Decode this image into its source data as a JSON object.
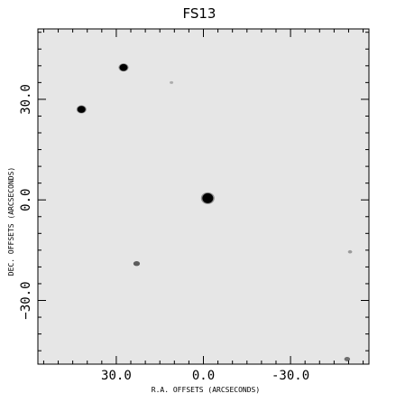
{
  "chart_data": {
    "type": "scatter",
    "title": "FS13",
    "xlabel": "R.A. OFFSETS (ARCSECONDS)",
    "ylabel": "DEC. OFFSETS (ARCSECONDS)",
    "xlim": [
      57.0,
      -57.0
    ],
    "ylim": [
      -49.0,
      51.0
    ],
    "x_ticks": [
      30.0,
      0.0,
      -30.0
    ],
    "x_tick_labels": [
      "30.0",
      "0.0",
      "-30.0"
    ],
    "y_ticks": [
      30.0,
      0.0,
      -30.0
    ],
    "y_tick_labels": [
      "30.0",
      "0.0",
      "−30.0"
    ],
    "grid": false,
    "background": "#e6e6e6",
    "source_color": "#000000",
    "sources": [
      {
        "x": 27.5,
        "y": 39.5,
        "brightness": 0.95
      },
      {
        "x": 42.0,
        "y": 27.0,
        "brightness": 0.95
      },
      {
        "x": -1.5,
        "y": 0.5,
        "brightness": 1.0
      },
      {
        "x": 23.0,
        "y": -19.0,
        "brightness": 0.6
      },
      {
        "x": 11.0,
        "y": 35.0,
        "brightness": 0.15
      },
      {
        "x": -50.5,
        "y": -15.5,
        "brightness": 0.25
      },
      {
        "x": -49.5,
        "y": -47.5,
        "brightness": 0.5
      }
    ]
  }
}
